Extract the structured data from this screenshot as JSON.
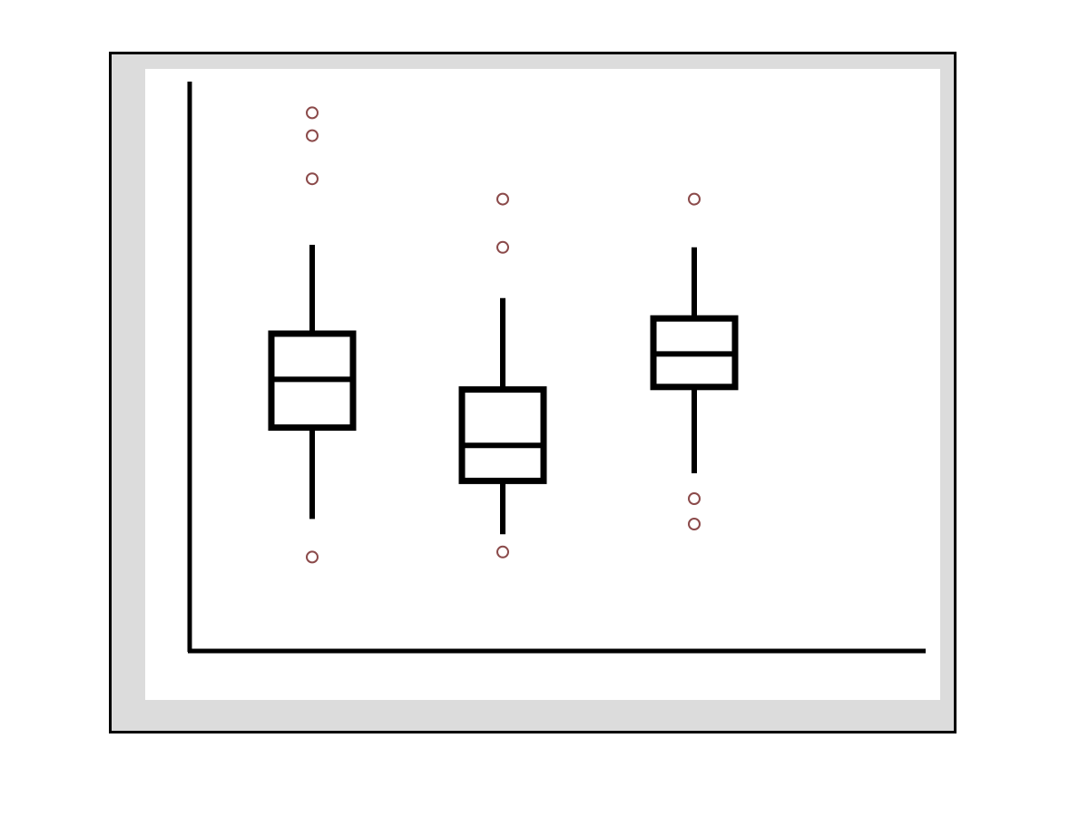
{
  "chart_data": {
    "type": "box",
    "title": "",
    "xlabel": "",
    "ylabel": "",
    "grid": false,
    "legend": "none",
    "ylim": [
      0,
      20
    ],
    "boxes": [
      {
        "whisker_low": 4.2,
        "q1": 7.8,
        "median": 9.7,
        "q3": 11.5,
        "whisker_high": 15.0,
        "outliers": [
          2.7,
          17.6,
          19.3,
          20.2
        ]
      },
      {
        "whisker_low": 3.6,
        "q1": 5.7,
        "median": 7.1,
        "q3": 9.3,
        "whisker_high": 12.9,
        "outliers": [
          2.9,
          14.9,
          16.8
        ]
      },
      {
        "whisker_low": 6.0,
        "q1": 9.4,
        "median": 10.7,
        "q3": 12.1,
        "whisker_high": 14.9,
        "outliers": [
          4.0,
          5.0,
          16.8
        ]
      }
    ],
    "colors": {
      "box_stroke": "#000000",
      "outlier_stroke": "#8b4a4a",
      "frame_background": "#dcdcdc",
      "plot_background": "#ffffff"
    }
  }
}
